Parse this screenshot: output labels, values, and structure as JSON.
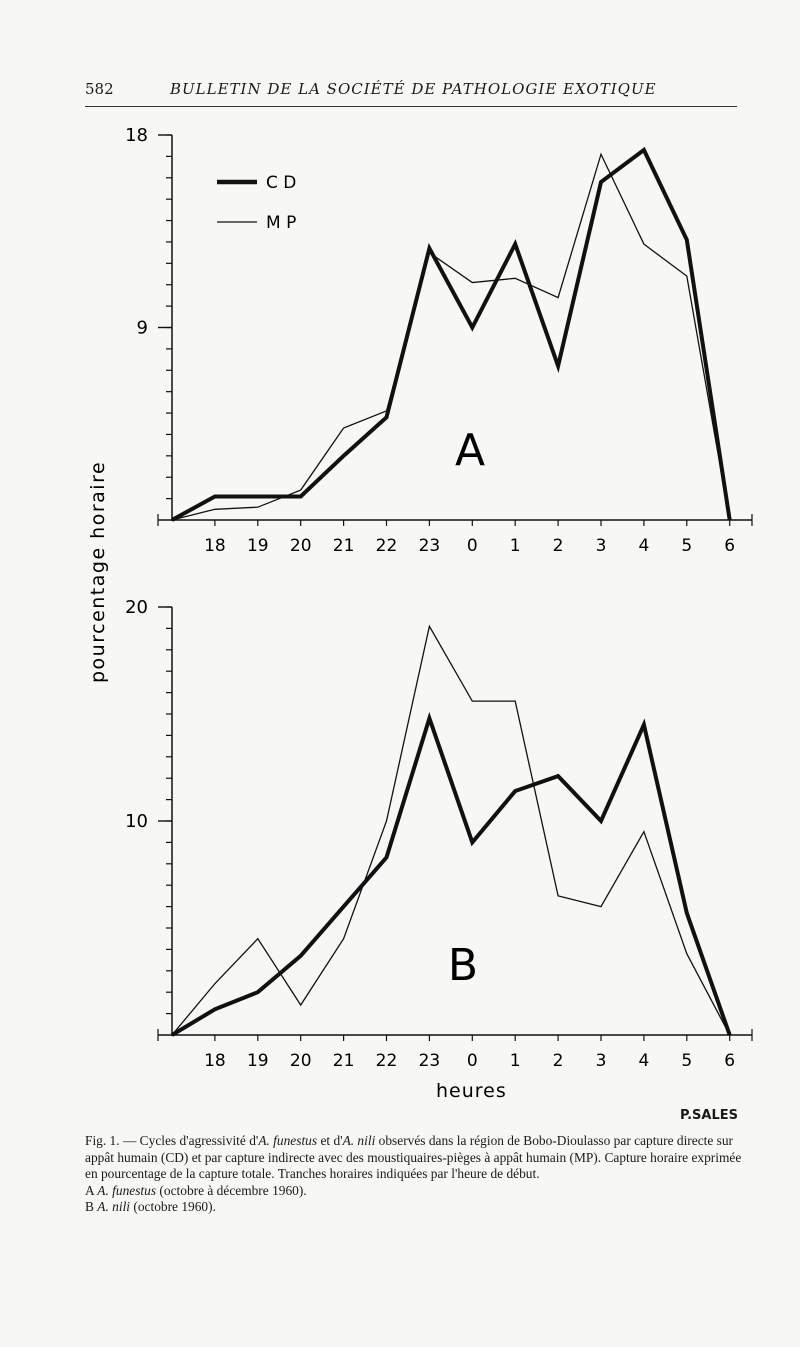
{
  "header": {
    "page_number": "582",
    "running_title": "BULLETIN DE LA SOCIÉTÉ DE PATHOLOGIE EXOTIQUE"
  },
  "figure": {
    "ylabel": "pourcentage horaire",
    "xlabel": "heures",
    "author": "P.SALES",
    "legend": {
      "cd": "C D",
      "mp": "M P"
    }
  },
  "caption": {
    "line1_pre": "Fig. 1. — Cycles d'agressivité d'",
    "species1": "A. funestus",
    "mid": " et d'",
    "species2": "A. nili",
    "line1_post": " observés dans la région de Bobo-Dioulasso par capture directe sur appât humain (CD) et par capture indirecte avec des moustiquaires-pièges à appât humain (MP). Capture horaire exprimée en pourcentage de la capture totale. Tranches horaires indiquées par l'heure de début.",
    "a_label": "A",
    "a_species": "A. funestus",
    "a_period": " (octobre à décembre 1960).",
    "b_label": "B",
    "b_species": "A. nili",
    "b_period": " (octobre 1960)."
  },
  "chart_data": [
    {
      "type": "line",
      "panel": "A",
      "title": "A",
      "xlabel": "heures",
      "ylabel": "pourcentage horaire",
      "x_tick_labels": [
        "18",
        "19",
        "20",
        "21",
        "22",
        "23",
        "0",
        "1",
        "2",
        "3",
        "4",
        "5",
        "6"
      ],
      "x": [
        "17",
        "18",
        "19",
        "20",
        "21",
        "22",
        "23",
        "0",
        "1",
        "2",
        "3",
        "4",
        "5",
        "6"
      ],
      "y_ticks": [
        9,
        18
      ],
      "ylim": [
        0,
        18
      ],
      "legend_position": "top-left",
      "series": [
        {
          "name": "CD",
          "style": "thick",
          "values": [
            0,
            1.1,
            1.1,
            1.1,
            3.0,
            4.8,
            12.7,
            9.0,
            12.9,
            7.2,
            15.8,
            17.3,
            13.1,
            0
          ]
        },
        {
          "name": "MP",
          "style": "thin",
          "values": [
            0,
            0.5,
            0.6,
            1.4,
            4.3,
            5.1,
            12.5,
            11.1,
            11.3,
            10.4,
            17.1,
            12.9,
            11.4,
            0
          ]
        }
      ]
    },
    {
      "type": "line",
      "panel": "B",
      "title": "B",
      "xlabel": "heures",
      "ylabel": "pourcentage horaire",
      "x_tick_labels": [
        "18",
        "19",
        "20",
        "21",
        "22",
        "23",
        "0",
        "1",
        "2",
        "3",
        "4",
        "5",
        "6"
      ],
      "x": [
        "17",
        "18",
        "19",
        "20",
        "21",
        "22",
        "23",
        "0",
        "1",
        "2",
        "3",
        "4",
        "5",
        "6"
      ],
      "y_ticks": [
        10,
        20
      ],
      "ylim": [
        0,
        20
      ],
      "series": [
        {
          "name": "CD",
          "style": "thick",
          "values": [
            0,
            1.2,
            2.0,
            3.7,
            6.0,
            8.3,
            14.8,
            9.0,
            11.4,
            12.1,
            10.0,
            14.5,
            5.7,
            0
          ]
        },
        {
          "name": "MP",
          "style": "thin",
          "values": [
            0,
            2.4,
            4.5,
            1.4,
            4.5,
            10.0,
            19.1,
            15.6,
            15.6,
            6.5,
            6.0,
            9.5,
            3.8,
            0
          ]
        }
      ]
    }
  ]
}
